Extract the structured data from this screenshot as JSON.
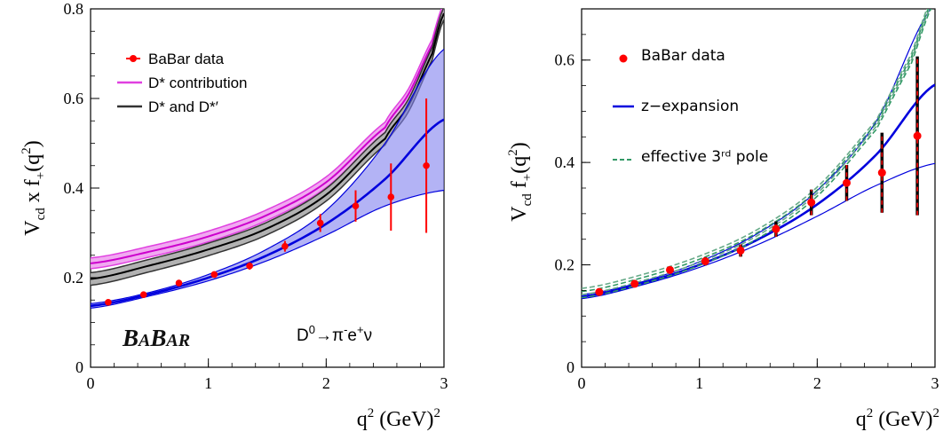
{
  "chart_data": [
    {
      "type": "line",
      "title": "",
      "xlabel": "q² (GeV)²",
      "ylabel": "V_cd x f_+(q²)",
      "xlim": [
        0,
        3
      ],
      "ylim": [
        0,
        0.8
      ],
      "x_ticks": [
        "0",
        "1",
        "2",
        "3"
      ],
      "y_ticks": [
        "0",
        "0.2",
        "0.4",
        "0.6",
        "0.8"
      ],
      "legend_position": "top-left",
      "logo_text": "BABAR",
      "annotation": "D⁰→π⁻e⁺ν",
      "series": [
        {
          "name": "BaBar data",
          "kind": "points",
          "color": "#ff0000",
          "x": [
            0.15,
            0.45,
            0.75,
            1.05,
            1.35,
            1.65,
            1.95,
            2.25,
            2.55,
            2.85
          ],
          "y": [
            0.145,
            0.162,
            0.188,
            0.207,
            0.226,
            0.27,
            0.322,
            0.36,
            0.38,
            0.45
          ],
          "err": [
            0.004,
            0.004,
            0.005,
            0.006,
            0.008,
            0.012,
            0.02,
            0.035,
            0.075,
            0.15
          ]
        },
        {
          "name": "D* contribution",
          "kind": "band",
          "color": "#e040e0",
          "x": [
            0,
            0.5,
            1,
            1.5,
            2,
            2.5,
            2.7,
            2.9,
            3.0
          ],
          "y": [
            0.232,
            0.258,
            0.292,
            0.34,
            0.413,
            0.535,
            0.61,
            0.72,
            0.8
          ],
          "half_width": 0.012
        },
        {
          "name": "D* and D*′",
          "kind": "band",
          "color": "#333333",
          "x": [
            0,
            0.5,
            1,
            1.5,
            2,
            2.5,
            2.7,
            2.9,
            3.0
          ],
          "y": [
            0.197,
            0.227,
            0.263,
            0.31,
            0.385,
            0.51,
            0.585,
            0.7,
            0.79
          ],
          "half_width": 0.014
        },
        {
          "name": "",
          "kind": "fit",
          "color": "#0000dd",
          "x": [
            0,
            0.5,
            1,
            1.5,
            2,
            2.5,
            3.0
          ],
          "y": [
            0.137,
            0.163,
            0.2,
            0.25,
            0.32,
            0.42,
            0.553
          ],
          "lower": [
            0.132,
            0.159,
            0.193,
            0.238,
            0.295,
            0.36,
            0.395
          ],
          "upper": [
            0.142,
            0.167,
            0.207,
            0.264,
            0.35,
            0.5,
            0.71
          ]
        }
      ]
    },
    {
      "type": "line",
      "title": "",
      "xlabel": "q² (GeV)²",
      "ylabel": "V_cd f_+(q²)",
      "xlim": [
        0,
        3
      ],
      "ylim": [
        0,
        0.7
      ],
      "x_ticks": [
        "0",
        "1",
        "2",
        "3"
      ],
      "y_ticks": [
        "0",
        "0.2",
        "0.4",
        "0.6"
      ],
      "legend_position": "top-left",
      "series": [
        {
          "name": "BaBar data",
          "kind": "points",
          "color": "#ff0000",
          "x": [
            0.15,
            0.45,
            0.75,
            1.05,
            1.35,
            1.65,
            1.95,
            2.25,
            2.55,
            2.85
          ],
          "y": [
            0.147,
            0.163,
            0.19,
            0.207,
            0.228,
            0.27,
            0.322,
            0.36,
            0.38,
            0.452
          ],
          "err": [
            0.004,
            0.004,
            0.006,
            0.008,
            0.012,
            0.015,
            0.025,
            0.035,
            0.078,
            0.155
          ]
        },
        {
          "name": "z−expansion",
          "kind": "fit",
          "color": "#0000dd",
          "x": [
            0,
            0.5,
            1,
            1.5,
            2,
            2.5,
            3.0
          ],
          "y": [
            0.138,
            0.163,
            0.2,
            0.25,
            0.318,
            0.415,
            0.552
          ],
          "lower": [
            0.134,
            0.16,
            0.195,
            0.24,
            0.295,
            0.355,
            0.398
          ],
          "upper": [
            0.142,
            0.166,
            0.206,
            0.262,
            0.345,
            0.48,
            0.71
          ]
        },
        {
          "name": "effective 3ʳᵈ pole",
          "kind": "dashed",
          "color": "#339966",
          "x": [
            0,
            0.5,
            1,
            1.5,
            2,
            2.5,
            2.8,
            3.0
          ],
          "y": [
            0.142,
            0.168,
            0.205,
            0.258,
            0.34,
            0.47,
            0.6,
            0.72
          ]
        }
      ]
    }
  ],
  "legend_labels": {
    "left": [
      "BaBar data",
      "D* contribution",
      "D* and D*′"
    ],
    "right": [
      "BaBar data",
      "z−expansion",
      "effective 3ʳᵈ pole"
    ]
  }
}
